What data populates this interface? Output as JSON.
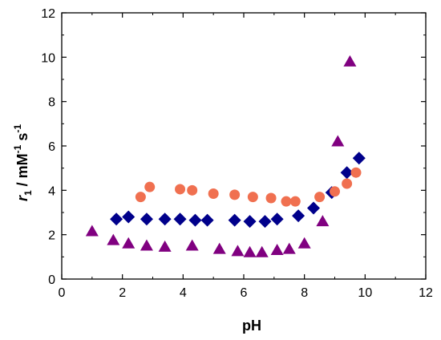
{
  "chart_data": {
    "type": "scatter",
    "xlabel": "pH",
    "ylabel": {
      "italic": "r",
      "sub": "1",
      "text": " / mM",
      "sup1": "-1",
      "text2": " s",
      "sup2": "-1"
    },
    "xlim": [
      0,
      12
    ],
    "ylim": [
      0,
      12
    ],
    "xticks": [
      0,
      2,
      4,
      6,
      8,
      10,
      12
    ],
    "yticks": [
      0,
      2,
      4,
      6,
      8,
      10,
      12
    ],
    "grid": false,
    "legend": "none",
    "series": [
      {
        "marker": "diamond",
        "color": "#00008B",
        "points": [
          [
            1.8,
            2.7
          ],
          [
            2.2,
            2.8
          ],
          [
            2.8,
            2.7
          ],
          [
            3.4,
            2.7
          ],
          [
            3.9,
            2.7
          ],
          [
            4.4,
            2.65
          ],
          [
            4.8,
            2.65
          ],
          [
            5.7,
            2.65
          ],
          [
            6.2,
            2.6
          ],
          [
            6.7,
            2.6
          ],
          [
            7.1,
            2.7
          ],
          [
            7.8,
            2.85
          ],
          [
            8.3,
            3.2
          ],
          [
            8.9,
            3.9
          ],
          [
            9.4,
            4.8
          ],
          [
            9.8,
            5.45
          ]
        ]
      },
      {
        "marker": "circle",
        "color": "#F07050",
        "points": [
          [
            2.6,
            3.7
          ],
          [
            2.9,
            4.15
          ],
          [
            3.9,
            4.05
          ],
          [
            4.3,
            4.0
          ],
          [
            5.0,
            3.85
          ],
          [
            5.7,
            3.8
          ],
          [
            6.3,
            3.7
          ],
          [
            6.9,
            3.65
          ],
          [
            7.4,
            3.5
          ],
          [
            7.7,
            3.5
          ],
          [
            8.5,
            3.7
          ],
          [
            9.0,
            3.95
          ],
          [
            9.4,
            4.3
          ],
          [
            9.7,
            4.8
          ]
        ]
      },
      {
        "marker": "triangle",
        "color": "#800080",
        "points": [
          [
            1.0,
            2.15
          ],
          [
            1.7,
            1.75
          ],
          [
            2.2,
            1.6
          ],
          [
            2.8,
            1.5
          ],
          [
            3.4,
            1.45
          ],
          [
            4.3,
            1.5
          ],
          [
            5.2,
            1.35
          ],
          [
            5.8,
            1.25
          ],
          [
            6.2,
            1.2
          ],
          [
            6.6,
            1.2
          ],
          [
            7.1,
            1.3
          ],
          [
            7.5,
            1.35
          ],
          [
            8.0,
            1.6
          ],
          [
            8.6,
            2.6
          ],
          [
            9.1,
            6.2
          ],
          [
            9.5,
            9.8
          ]
        ]
      }
    ]
  }
}
